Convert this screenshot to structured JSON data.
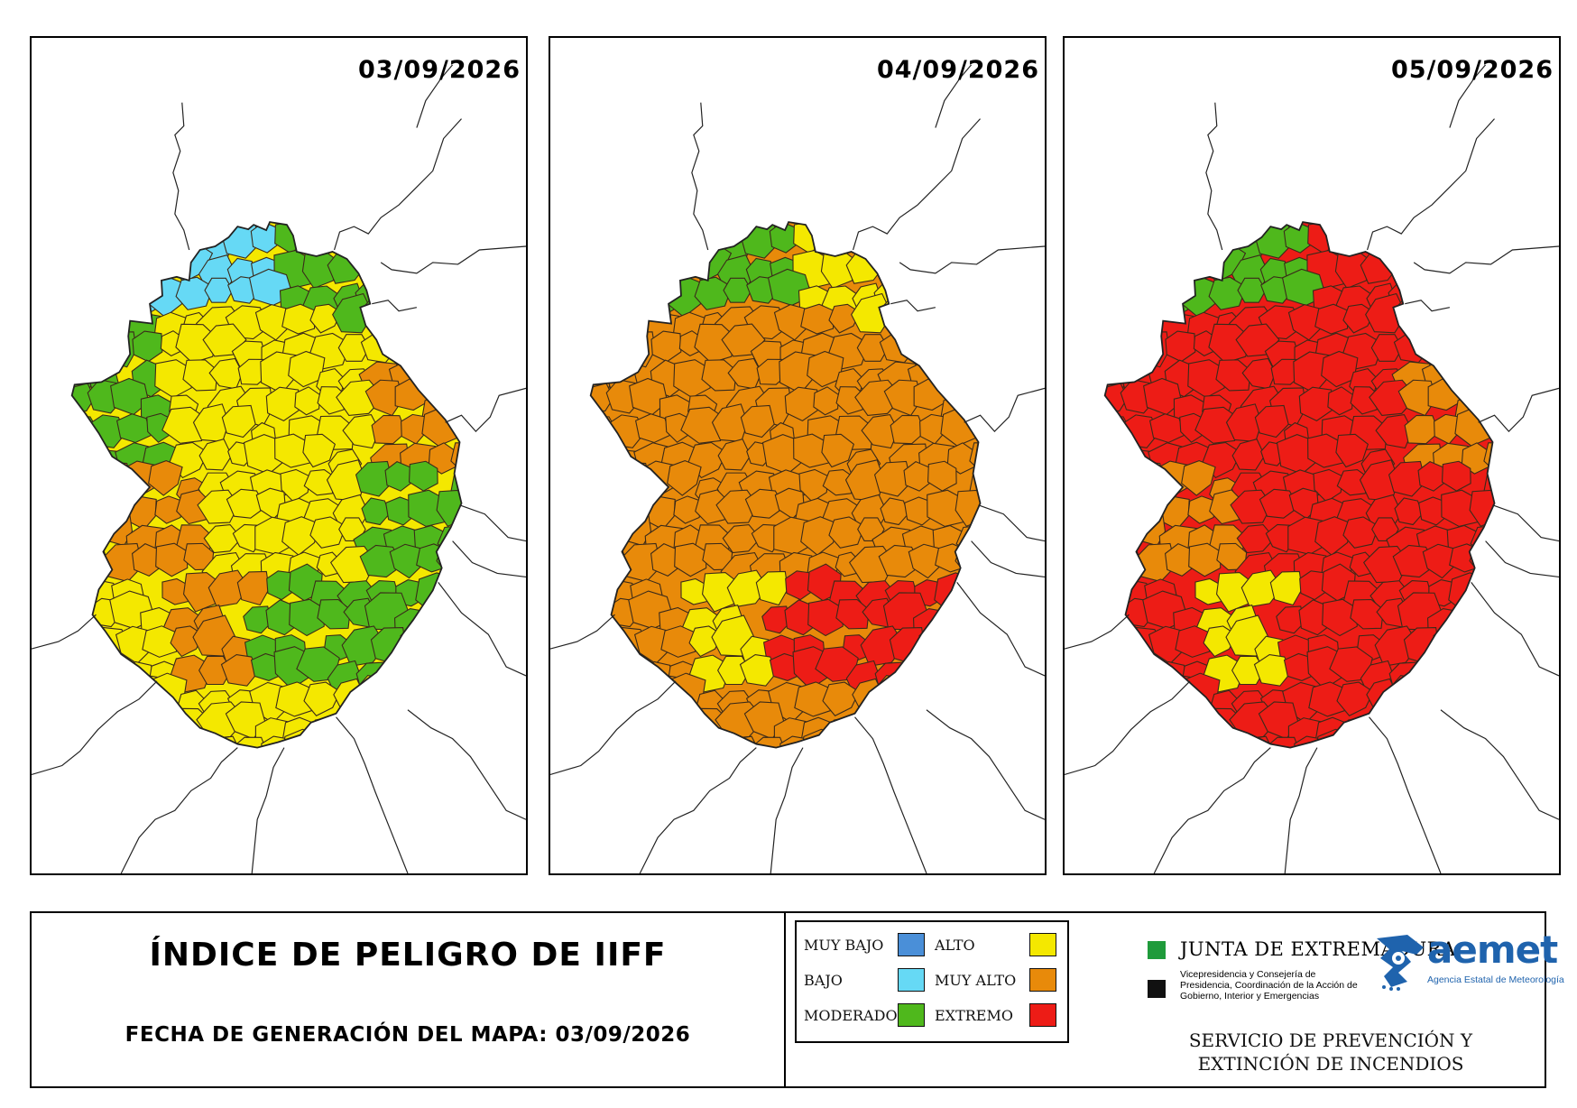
{
  "maps": [
    {
      "date": "03/09/2026",
      "palette": [
        "#4fb81c",
        "#4fb81c",
        "#f4e800",
        "#4fb81c",
        "#e88a0a",
        "#f4e800",
        "#4fb81c",
        "#f4e800",
        "#66d9f5",
        "#e88a0a"
      ]
    },
    {
      "date": "04/09/2026",
      "palette": [
        "#e88a0a",
        "#e88a0a",
        "#e88a0a",
        "#f4e800",
        "#e88a0a",
        "#e88a0a",
        "#ed1c16",
        "#e88a0a",
        "#4fb81c",
        "#f4e800"
      ]
    },
    {
      "date": "05/09/2026",
      "palette": [
        "#ed1c16",
        "#ed1c16",
        "#ed1c16",
        "#ed1c16",
        "#e88a0a",
        "#ed1c16",
        "#ed1c16",
        "#ed1c16",
        "#4fb81c",
        "#f4e800"
      ]
    }
  ],
  "footer": {
    "title": "ÍNDICE DE PELIGRO DE IIFF",
    "generation_date": "FECHA DE GENERACIÓN DEL MAPA: 03/09/2026",
    "service_line1": "SERVICIO DE PREVENCIÓN Y",
    "service_line2": "EXTINCIÓN DE INCENDIOS"
  },
  "legend": [
    {
      "label": "MUY BAJO",
      "color": "#4a8fd8"
    },
    {
      "label": "BAJO",
      "color": "#66d9f5"
    },
    {
      "label": "MODERADO",
      "color": "#4fb81c"
    },
    {
      "label": "ALTO",
      "color": "#f4e800"
    },
    {
      "label": "MUY ALTO",
      "color": "#e88a0a"
    },
    {
      "label": "EXTREMO",
      "color": "#ed1c16"
    }
  ],
  "logos": {
    "junta_title": "JUNTA DE EXTREMADURA",
    "junta_subtitle": "Vicepresidencia y Consejería de Presidencia, Coordinación de la Acción de Gobierno, Interior y Emergencias",
    "aemet_name": "aemet",
    "aemet_subtitle": "Agencia Estatal de Meteorología"
  },
  "icons": {
    "junta": "junta-logo-icon",
    "aemet": "aemet-logo-icon"
  }
}
